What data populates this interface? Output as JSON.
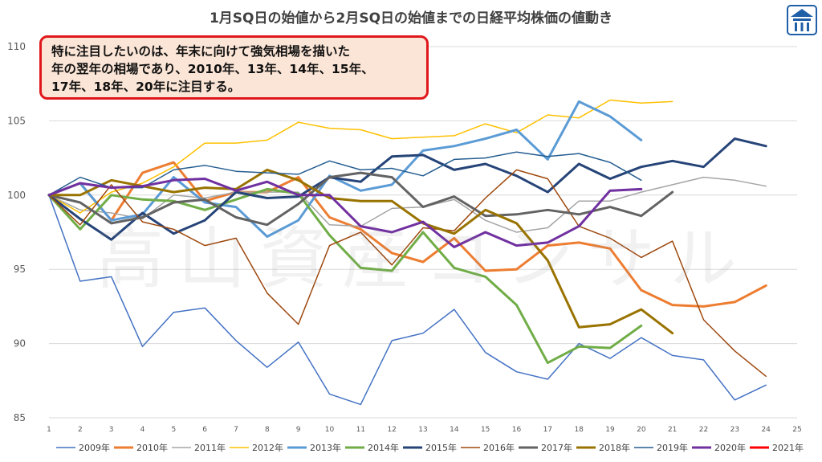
{
  "chart_data": {
    "type": "line",
    "title": "1月SQ日の始値から2月SQ日の始値までの日経平均株価の値動き",
    "xlabel": "",
    "ylabel": "",
    "ylim": [
      85,
      110
    ],
    "yticks": [
      85,
      90,
      95,
      100,
      105,
      110
    ],
    "xlim": [
      1,
      25
    ],
    "xticks": [
      1,
      2,
      3,
      4,
      5,
      6,
      7,
      8,
      9,
      10,
      11,
      12,
      13,
      14,
      15,
      16,
      17,
      18,
      19,
      20,
      21,
      22,
      23,
      24,
      25
    ],
    "grid": "horizontal",
    "legend": "bottom",
    "series": [
      {
        "name": "2009年",
        "color": "#4472c4",
        "width": 1.5,
        "values": [
          100,
          94.2,
          94.5,
          89.8,
          92.1,
          92.4,
          90.2,
          88.4,
          90.1,
          86.6,
          85.9,
          90.2,
          90.7,
          92.3,
          89.4,
          88.1,
          87.6,
          90.0,
          89.0,
          90.4,
          89.2,
          88.9,
          86.2,
          87.2
        ]
      },
      {
        "name": "2010年",
        "color": "#ed7d31",
        "width": 3,
        "values": [
          100,
          100.8,
          98.3,
          101.5,
          102.2,
          99.6,
          100.2,
          100.2,
          101.2,
          98.5,
          97.7,
          96.1,
          95.5,
          97.1,
          94.9,
          95.0,
          96.6,
          96.8,
          96.4,
          93.6,
          92.6,
          92.5,
          92.8,
          93.9
        ]
      },
      {
        "name": "2011年",
        "color": "#a5a5a5",
        "width": 1.5,
        "values": [
          100,
          99.0,
          98.8,
          98.4,
          100.0,
          99.8,
          100.2,
          100.2,
          100.2,
          98.0,
          97.9,
          99.1,
          99.2,
          99.7,
          98.3,
          97.5,
          97.8,
          99.6,
          99.6,
          100.2,
          100.7,
          101.2,
          101.0,
          100.6
        ]
      },
      {
        "name": "2012年",
        "color": "#ffc000",
        "width": 1.5,
        "values": [
          100,
          98.8,
          100.2,
          100.8,
          101.9,
          103.5,
          103.5,
          103.7,
          104.9,
          104.5,
          104.4,
          103.8,
          103.9,
          104.0,
          104.8,
          104.2,
          105.4,
          105.2,
          106.4,
          106.2,
          106.3
        ]
      },
      {
        "name": "2013年",
        "color": "#5b9bd5",
        "width": 3,
        "values": [
          100,
          100.8,
          98.3,
          98.7,
          101.2,
          99.5,
          99.2,
          97.2,
          98.3,
          101.3,
          100.3,
          100.7,
          103.0,
          103.3,
          103.8,
          104.4,
          102.4,
          106.3,
          105.3,
          103.7
        ]
      },
      {
        "name": "2014年",
        "color": "#70ad47",
        "width": 3,
        "values": [
          100,
          97.7,
          100.0,
          99.7,
          99.6,
          99.0,
          99.7,
          100.4,
          100.1,
          97.3,
          95.1,
          94.9,
          97.5,
          95.1,
          94.5,
          92.6,
          88.7,
          89.8,
          89.7,
          91.2
        ]
      },
      {
        "name": "2015年",
        "color": "#264478",
        "width": 3,
        "values": [
          100,
          98.4,
          97.0,
          98.8,
          97.4,
          98.3,
          100.2,
          99.8,
          99.9,
          101.2,
          100.9,
          102.6,
          102.7,
          101.7,
          102.1,
          101.3,
          100.2,
          102.1,
          101.1,
          101.9,
          102.3,
          101.9,
          103.8,
          103.3
        ]
      },
      {
        "name": "2016年",
        "color": "#9e480e",
        "width": 1.5,
        "values": [
          100,
          98.0,
          100.7,
          98.2,
          97.7,
          96.6,
          97.1,
          93.4,
          91.3,
          96.6,
          97.5,
          95.3,
          97.8,
          97.6,
          99.8,
          101.7,
          101.1,
          97.9,
          97.1,
          95.8,
          96.9,
          91.6,
          89.5,
          87.8
        ]
      },
      {
        "name": "2017年",
        "color": "#636363",
        "width": 3,
        "values": [
          100,
          99.5,
          98.1,
          98.5,
          99.5,
          99.7,
          98.5,
          98.0,
          99.4,
          101.2,
          101.5,
          101.2,
          99.2,
          99.9,
          98.6,
          98.7,
          99.0,
          98.7,
          99.2,
          98.6,
          100.2
        ]
      },
      {
        "name": "2018年",
        "color": "#997300",
        "width": 3,
        "values": [
          100,
          100.0,
          101.0,
          100.6,
          100.2,
          100.5,
          100.4,
          101.7,
          101.0,
          99.8,
          99.6,
          99.6,
          98.1,
          97.4,
          99.0,
          98.1,
          95.6,
          91.1,
          91.3,
          92.3,
          90.7
        ]
      },
      {
        "name": "2019年",
        "color": "#255e91",
        "width": 1.5,
        "values": [
          100,
          101.2,
          100.5,
          100.5,
          101.7,
          102.0,
          101.6,
          101.5,
          101.4,
          102.3,
          101.7,
          101.8,
          101.3,
          102.4,
          102.5,
          102.9,
          102.6,
          102.8,
          102.2,
          101.0
        ]
      },
      {
        "name": "2020年",
        "color": "#7030a0",
        "width": 3,
        "values": [
          100,
          100.8,
          100.5,
          100.6,
          101.0,
          101.1,
          100.3,
          100.9,
          100.0,
          100.0,
          97.9,
          97.5,
          98.2,
          96.5,
          97.5,
          96.6,
          96.8,
          97.9,
          100.3,
          100.4
        ]
      },
      {
        "name": "2021年",
        "color": "#ff0000",
        "width": 3,
        "values": [
          100
        ]
      }
    ],
    "annotations": [
      "特に注目したいのは、年末に向けて強気相場を描いた\n年の翌年の相場であり、2010年、13年、14年、15年、\n17年、18年、20年に注目する。"
    ]
  }
}
